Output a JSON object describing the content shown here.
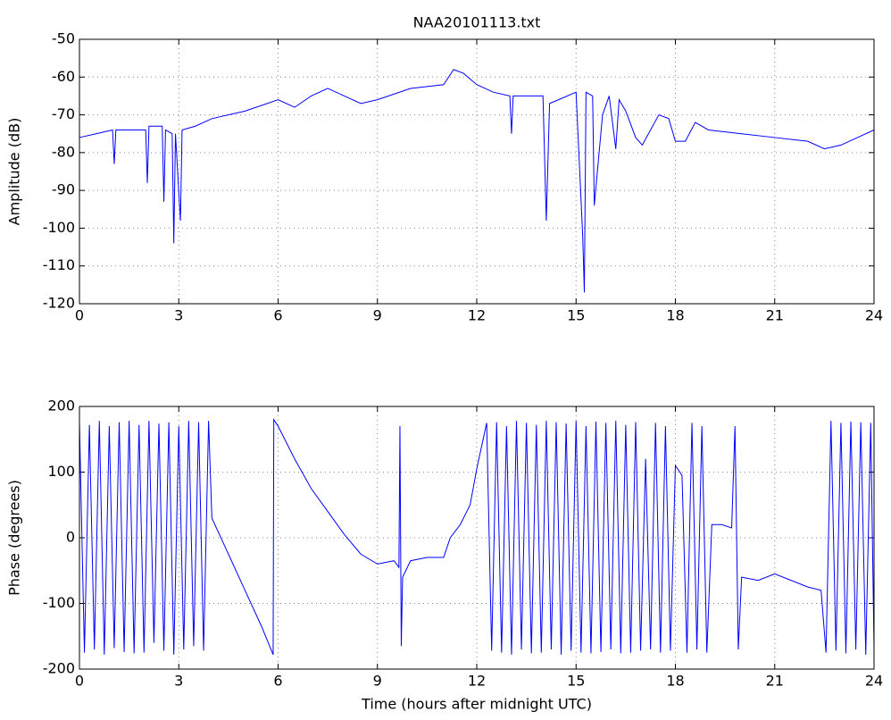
{
  "chart_data": [
    {
      "type": "line",
      "title": "NAA20101113.txt",
      "y_label": "Amplitude (dB)",
      "color": "#0000ff",
      "grid": true,
      "xlim": [
        0,
        24
      ],
      "xticks": [
        0,
        3,
        6,
        9,
        12,
        15,
        18,
        21,
        24
      ],
      "ylim": [
        -120,
        -50
      ],
      "yticks": [
        -50,
        -60,
        -70,
        -80,
        -90,
        -100,
        -110,
        -120
      ],
      "x": [
        0,
        0.5,
        1,
        1.05,
        1.1,
        2,
        2.05,
        2.1,
        2.5,
        2.55,
        2.6,
        2.8,
        2.85,
        2.9,
        3.05,
        3.1,
        3.5,
        4,
        5,
        6,
        6.5,
        7,
        7.5,
        8,
        8.5,
        9,
        10,
        11,
        11.3,
        11.6,
        12,
        12.5,
        13,
        13.05,
        13.1,
        14,
        14.1,
        14.2,
        15,
        15.2,
        15.25,
        15.3,
        15.5,
        15.55,
        15.8,
        16,
        16.2,
        16.3,
        16.5,
        16.8,
        17,
        17.5,
        17.8,
        18,
        18.3,
        18.6,
        19,
        20,
        21,
        22,
        22.5,
        23,
        23.5,
        24
      ],
      "values": [
        -76,
        -75,
        -74,
        -83,
        -74,
        -74,
        -88,
        -73,
        -73,
        -93,
        -74,
        -75,
        -104,
        -75,
        -98,
        -74,
        -73,
        -71,
        -69,
        -66,
        -68,
        -65,
        -63,
        -65,
        -67,
        -66,
        -63,
        -62,
        -58,
        -59,
        -62,
        -64,
        -65,
        -75,
        -65,
        -65,
        -98,
        -67,
        -64,
        -102,
        -117,
        -64,
        -65,
        -94,
        -70,
        -65,
        -79,
        -66,
        -69,
        -76,
        -78,
        -70,
        -71,
        -77,
        -77,
        -72,
        -74,
        -75,
        -76,
        -77,
        -79,
        -78,
        -76,
        -74
      ]
    },
    {
      "type": "line",
      "y_label": "Phase (degrees)",
      "x_label": "Time (hours after midnight UTC)",
      "color": "#0000ff",
      "grid": true,
      "xlim": [
        0,
        24
      ],
      "xticks": [
        0,
        3,
        6,
        9,
        12,
        15,
        18,
        21,
        24
      ],
      "ylim": [
        -200,
        200
      ],
      "yticks": [
        200,
        100,
        0,
        -100,
        -200
      ],
      "x": [
        0,
        0.15,
        0.3,
        0.45,
        0.6,
        0.75,
        0.9,
        1.05,
        1.2,
        1.35,
        1.5,
        1.65,
        1.8,
        1.95,
        2.1,
        2.25,
        2.4,
        2.55,
        2.7,
        2.85,
        3,
        3.15,
        3.3,
        3.45,
        3.6,
        3.75,
        3.9,
        4,
        4.5,
        5,
        5.5,
        5.85,
        5.87,
        6,
        6.5,
        7,
        7.5,
        8,
        8.5,
        9,
        9.5,
        9.65,
        9.68,
        9.72,
        9.76,
        10,
        10.5,
        11,
        11.2,
        11.5,
        11.8,
        12,
        12.3,
        12.45,
        12.6,
        12.75,
        12.9,
        13.05,
        13.2,
        13.35,
        13.5,
        13.65,
        13.8,
        13.95,
        14.1,
        14.25,
        14.4,
        14.55,
        14.7,
        14.85,
        15,
        15.15,
        15.3,
        15.45,
        15.6,
        15.75,
        15.9,
        16.05,
        16.2,
        16.35,
        16.5,
        16.65,
        16.8,
        16.95,
        17.1,
        17.25,
        17.4,
        17.55,
        17.7,
        17.85,
        18,
        18.2,
        18.35,
        18.5,
        18.65,
        18.8,
        18.95,
        19.1,
        19.4,
        19.7,
        19.8,
        19.9,
        20,
        20.5,
        21,
        21.5,
        22,
        22.4,
        22.55,
        22.7,
        22.85,
        23,
        23.15,
        23.3,
        23.45,
        23.6,
        23.75,
        23.9,
        24
      ],
      "values": [
        175,
        -175,
        172,
        -170,
        178,
        -178,
        170,
        -168,
        176,
        -174,
        178,
        -176,
        172,
        -175,
        178,
        -160,
        174,
        -172,
        176,
        -178,
        170,
        -170,
        178,
        -165,
        176,
        -172,
        178,
        30,
        -25,
        -80,
        -135,
        -178,
        180,
        170,
        120,
        75,
        40,
        5,
        -25,
        -40,
        -35,
        -45,
        170,
        -165,
        -60,
        -35,
        -30,
        -30,
        0,
        20,
        50,
        105,
        175,
        -172,
        176,
        -175,
        170,
        -178,
        178,
        -170,
        175,
        -176,
        172,
        -175,
        178,
        -170,
        176,
        -178,
        174,
        -172,
        178,
        -175,
        170,
        -176,
        177,
        -174,
        175,
        -170,
        178,
        -176,
        172,
        -175,
        176,
        -172,
        120,
        -170,
        175,
        -175,
        170,
        -172,
        110,
        95,
        -175,
        175,
        -170,
        170,
        -175,
        20,
        20,
        15,
        170,
        -170,
        -60,
        -65,
        -55,
        -65,
        -75,
        -80,
        -175,
        178,
        -172,
        175,
        -176,
        177,
        -170,
        176,
        -178,
        175,
        -170
      ]
    }
  ]
}
